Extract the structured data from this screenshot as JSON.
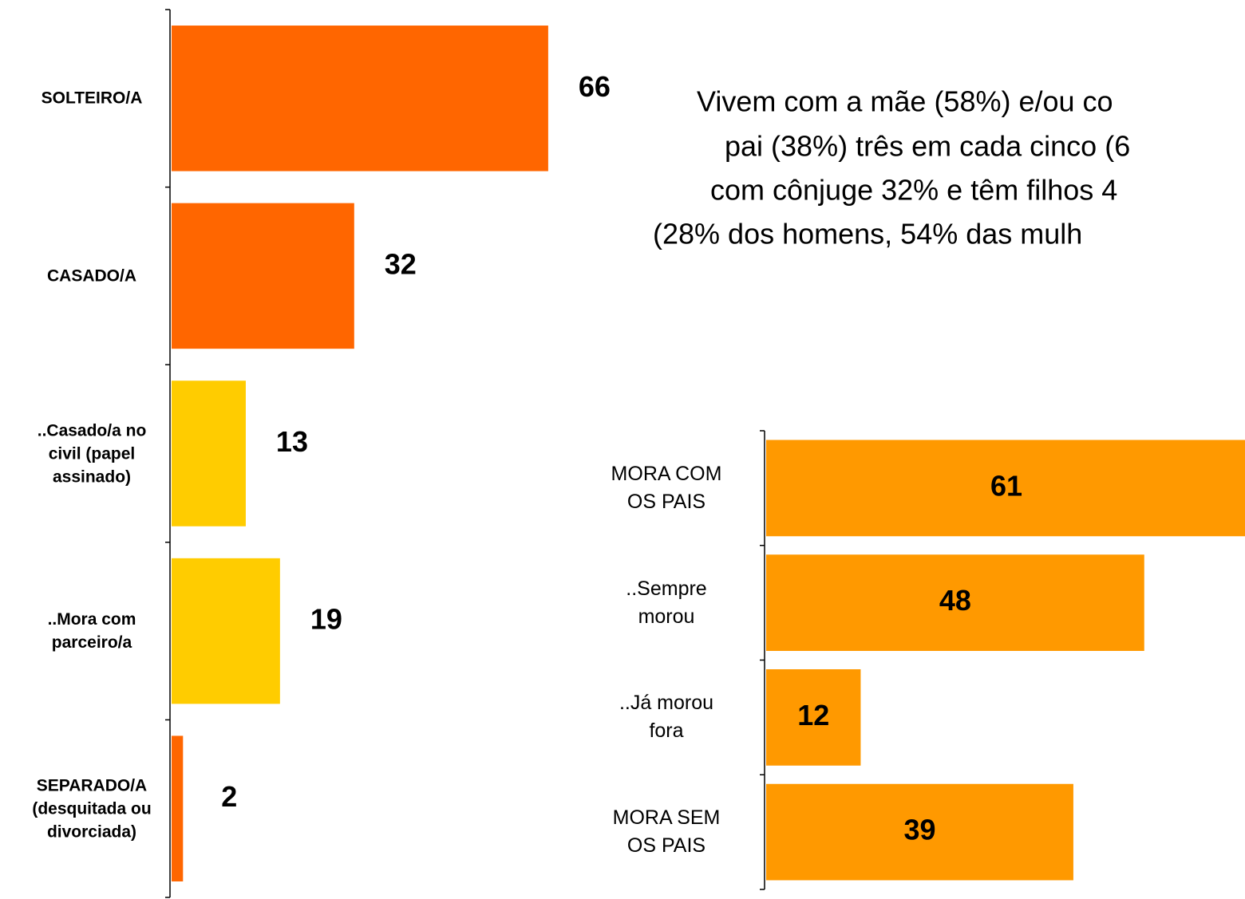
{
  "chart_data": [
    {
      "type": "hbar",
      "categories": [
        "SOLTEIRO/A",
        "CASADO/A",
        "..Casado/a no\ncivil (papel\nassinado)",
        "..Mora com\nparceiro/a",
        "SEPARADO/A\n(desquitada ou\ndivorciada)"
      ],
      "values": [
        66,
        32,
        13,
        19,
        2
      ],
      "colors": [
        "#ff6600",
        "#ff6600",
        "#ffcc00",
        "#ffcc00",
        "#ff6600"
      ],
      "xlim": [
        0,
        100
      ]
    },
    {
      "type": "hbar",
      "categories": [
        "MORA COM\nOS PAIS",
        "..Sempre\nmorou",
        "..Já morou\nfora",
        "MORA SEM\nOS PAIS"
      ],
      "values": [
        61,
        48,
        12,
        39
      ],
      "colors": [
        "#ff9900",
        "#ff9900",
        "#ff9900",
        "#ff9900"
      ],
      "xlim": [
        0,
        100
      ]
    }
  ],
  "annotation": [
    "Vivem com a mãe (58%) e/ou co",
    "pai (38%) três em cada cinco (6",
    "com cônjuge 32% e têm filhos 4",
    "(28% dos homens, 54% das mulh"
  ]
}
